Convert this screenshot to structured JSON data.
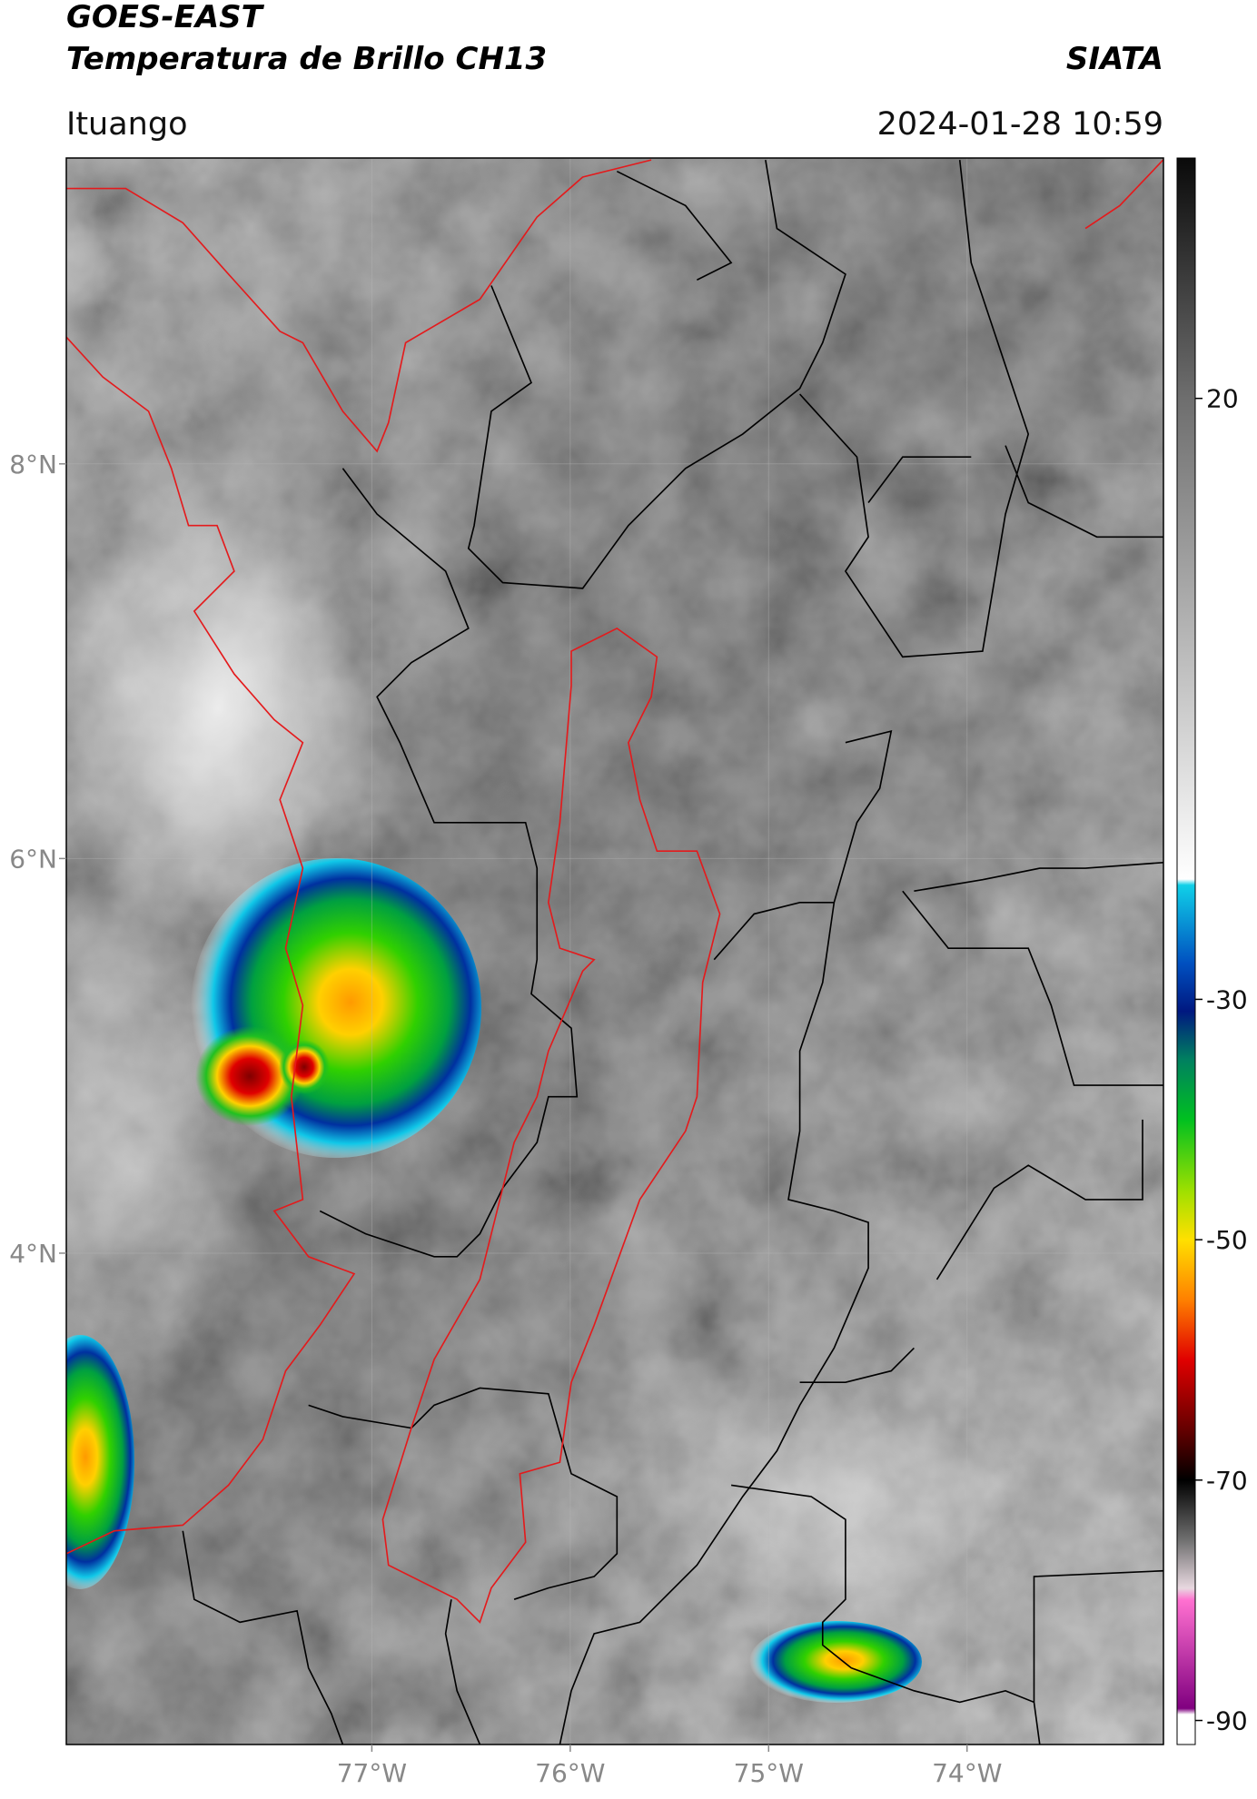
{
  "header": {
    "satellite": "GOES-EAST",
    "product": "Temperatura de Brillo CH13",
    "agency": "SIATA",
    "location": "Ituango",
    "timestamp": "2024-01-28 10:59"
  },
  "map": {
    "xlim": [
      -78.54,
      -73.01
    ],
    "ylim": [
      1.51,
      9.55
    ],
    "xticks": [
      {
        "value": -77,
        "label": "77°W"
      },
      {
        "value": -76,
        "label": "76°W"
      },
      {
        "value": -75,
        "label": "75°W"
      },
      {
        "value": -74,
        "label": "74°W"
      }
    ],
    "yticks": [
      {
        "value": 8,
        "label": "8°N"
      },
      {
        "value": 6,
        "label": "6°N"
      },
      {
        "value": 4,
        "label": "4°N"
      }
    ],
    "grid": true,
    "colorbar": {
      "range": [
        -92,
        40
      ],
      "ticks": [
        20,
        -30,
        -50,
        -70,
        -90
      ],
      "stops": [
        {
          "value": 40,
          "color": "#0a0a0a"
        },
        {
          "value": 20,
          "color": "#6e6e6e"
        },
        {
          "value": -20,
          "color": "#ffffff"
        },
        {
          "value": -20.5,
          "color": "#10d0e8"
        },
        {
          "value": -27,
          "color": "#0050c0"
        },
        {
          "value": -31,
          "color": "#001880"
        },
        {
          "value": -35,
          "color": "#008060"
        },
        {
          "value": -40,
          "color": "#00c020"
        },
        {
          "value": -46,
          "color": "#a0e000"
        },
        {
          "value": -50,
          "color": "#ffe000"
        },
        {
          "value": -55,
          "color": "#ff8000"
        },
        {
          "value": -60,
          "color": "#e00000"
        },
        {
          "value": -66,
          "color": "#600000"
        },
        {
          "value": -70,
          "color": "#000000"
        },
        {
          "value": -75,
          "color": "#707070"
        },
        {
          "value": -79,
          "color": "#e8d8e0"
        },
        {
          "value": -80,
          "color": "#ff70d0"
        },
        {
          "value": -89,
          "color": "#800080"
        },
        {
          "value": -89.5,
          "color": "#ffffff"
        },
        {
          "value": -92,
          "color": "#ffffff"
        }
      ]
    }
  }
}
